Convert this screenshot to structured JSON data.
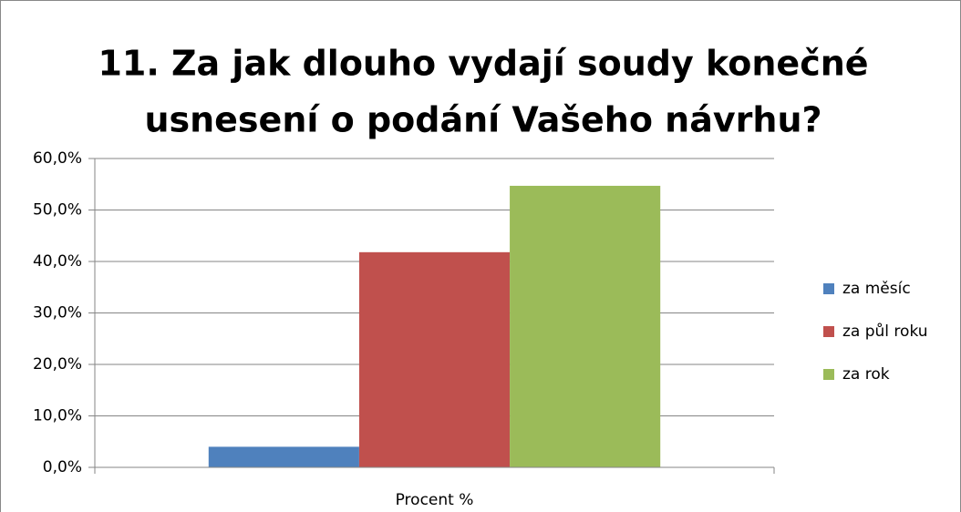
{
  "chart_data": {
    "type": "bar",
    "title": [
      "11. Za jak dlouho vydají soudy konečné",
      "usnesení o podání Vašeho návrhu?"
    ],
    "categories": [
      "Procent %"
    ],
    "series": [
      {
        "name": "za měsíc",
        "color": "#4f81bd",
        "values": [
          4.0
        ]
      },
      {
        "name": "za půl roku",
        "color": "#c0504d",
        "values": [
          41.8
        ]
      },
      {
        "name": "za rok",
        "color": "#9bbb59",
        "values": [
          54.7
        ]
      }
    ],
    "ylim": [
      0,
      60
    ],
    "yticks": [
      {
        "value": 0,
        "label": "0,0%"
      },
      {
        "value": 10,
        "label": "10,0%"
      },
      {
        "value": 20,
        "label": "20,0%"
      },
      {
        "value": 30,
        "label": "30,0%"
      },
      {
        "value": 40,
        "label": "40,0%"
      },
      {
        "value": 50,
        "label": "50,0%"
      },
      {
        "value": 60,
        "label": "60,0%"
      }
    ],
    "grid": true,
    "legend": "right"
  }
}
